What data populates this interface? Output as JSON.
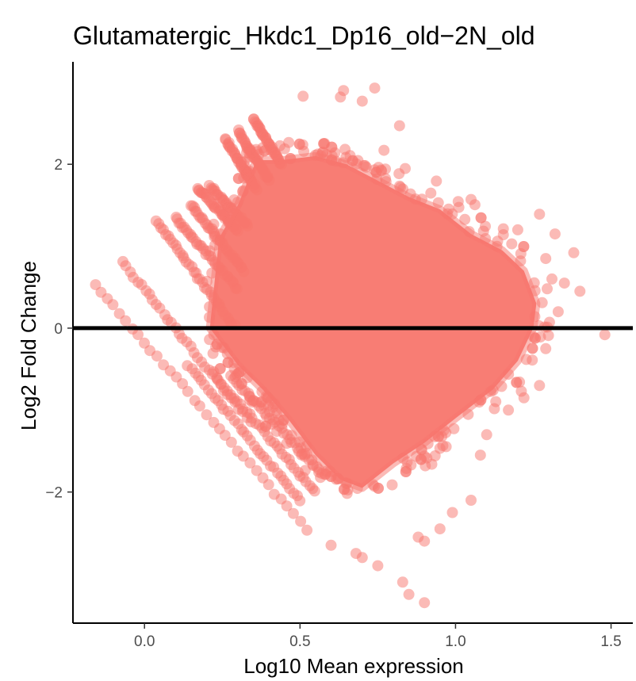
{
  "chart_data": {
    "type": "scatter",
    "title": "Glutamatergic_Hkdc1_Dp16_old−2N_old",
    "xlabel": "Log10 Mean expression",
    "ylabel": "Log2 Fold Change",
    "xlim": [
      -0.23,
      1.57
    ],
    "ylim": [
      -3.6,
      3.25
    ],
    "x_ticks": [
      {
        "value": 0.0,
        "label": "0.0"
      },
      {
        "value": 0.5,
        "label": "0.5"
      },
      {
        "value": 1.0,
        "label": "1.0"
      },
      {
        "value": 1.5,
        "label": "1.5"
      }
    ],
    "y_ticks": [
      {
        "value": -2,
        "label": "−2"
      },
      {
        "value": 0,
        "label": "0"
      },
      {
        "value": 2,
        "label": "2"
      }
    ],
    "hline": 0,
    "point_color": "#F8766D",
    "point_alpha": 0.5,
    "grid": false,
    "legend": "none",
    "series": [
      {
        "streak_lines": [
          {
            "x0": -0.16,
            "y0": 0.53,
            "x1": 0.52,
            "y1": -2.45
          },
          {
            "x0": -0.07,
            "y0": 0.8,
            "x1": 0.34,
            "y1": -1.15
          },
          {
            "x0": 0.04,
            "y0": 1.3,
            "x1": 0.29,
            "y1": 0.02
          },
          {
            "x0": 0.1,
            "y0": 1.35,
            "x1": 0.3,
            "y1": 0.48
          },
          {
            "x0": 0.15,
            "y0": 1.5,
            "x1": 0.32,
            "y1": 0.7
          },
          {
            "x0": 0.17,
            "y0": 1.72,
            "x1": 0.3,
            "y1": 1.2
          },
          {
            "x0": 0.21,
            "y0": 1.73,
            "x1": 0.33,
            "y1": 1.25
          },
          {
            "x0": 0.26,
            "y0": 2.3,
            "x1": 0.36,
            "y1": 1.7
          },
          {
            "x0": 0.3,
            "y0": 2.4,
            "x1": 0.4,
            "y1": 1.8
          },
          {
            "x0": 0.35,
            "y0": 2.55,
            "x1": 0.44,
            "y1": 2.0
          },
          {
            "x0": 0.14,
            "y0": -0.45,
            "x1": 0.5,
            "y1": -2.1
          },
          {
            "x0": 0.22,
            "y0": -0.55,
            "x1": 0.55,
            "y1": -2.0
          },
          {
            "x0": 0.28,
            "y0": -0.6,
            "x1": 0.58,
            "y1": -1.8
          }
        ],
        "cloud_polygon": [
          [
            0.21,
            0.0
          ],
          [
            0.24,
            1.1
          ],
          [
            0.3,
            1.5
          ],
          [
            0.36,
            2.05
          ],
          [
            0.44,
            2.05
          ],
          [
            0.55,
            2.1
          ],
          [
            0.65,
            2.0
          ],
          [
            0.75,
            1.8
          ],
          [
            0.85,
            1.6
          ],
          [
            0.95,
            1.45
          ],
          [
            1.05,
            1.15
          ],
          [
            1.15,
            0.95
          ],
          [
            1.22,
            0.7
          ],
          [
            1.26,
            0.3
          ],
          [
            1.25,
            0.0
          ],
          [
            1.2,
            -0.4
          ],
          [
            1.12,
            -0.75
          ],
          [
            1.0,
            -1.1
          ],
          [
            0.9,
            -1.4
          ],
          [
            0.8,
            -1.65
          ],
          [
            0.7,
            -1.95
          ],
          [
            0.63,
            -1.85
          ],
          [
            0.55,
            -1.55
          ],
          [
            0.46,
            -1.1
          ],
          [
            0.38,
            -0.75
          ],
          [
            0.3,
            -0.45
          ],
          [
            0.25,
            -0.2
          ]
        ],
        "outliers": [
          [
            0.74,
            2.93
          ],
          [
            0.64,
            2.9
          ],
          [
            0.63,
            2.82
          ],
          [
            0.51,
            2.83
          ],
          [
            0.7,
            2.77
          ],
          [
            0.82,
            2.47
          ],
          [
            0.77,
            2.17
          ],
          [
            1.05,
            1.57
          ],
          [
            1.27,
            1.39
          ],
          [
            1.2,
            1.2
          ],
          [
            1.32,
            1.15
          ],
          [
            1.38,
            0.92
          ],
          [
            1.29,
            0.85
          ],
          [
            1.31,
            0.6
          ],
          [
            1.35,
            0.55
          ],
          [
            1.4,
            0.45
          ],
          [
            1.33,
            0.2
          ],
          [
            1.48,
            -0.08
          ],
          [
            1.29,
            -0.25
          ],
          [
            1.27,
            -0.7
          ],
          [
            1.22,
            -0.85
          ],
          [
            1.17,
            -1.0
          ],
          [
            1.1,
            -1.3
          ],
          [
            1.08,
            -1.55
          ],
          [
            1.05,
            -2.1
          ],
          [
            0.99,
            -2.25
          ],
          [
            0.95,
            -2.45
          ],
          [
            0.88,
            -2.55
          ],
          [
            0.9,
            -2.6
          ],
          [
            0.83,
            -3.1
          ],
          [
            0.85,
            -3.25
          ],
          [
            0.9,
            -3.35
          ],
          [
            0.75,
            -2.9
          ],
          [
            0.7,
            -2.8
          ],
          [
            0.68,
            -2.75
          ],
          [
            0.6,
            -2.65
          ]
        ]
      }
    ]
  }
}
